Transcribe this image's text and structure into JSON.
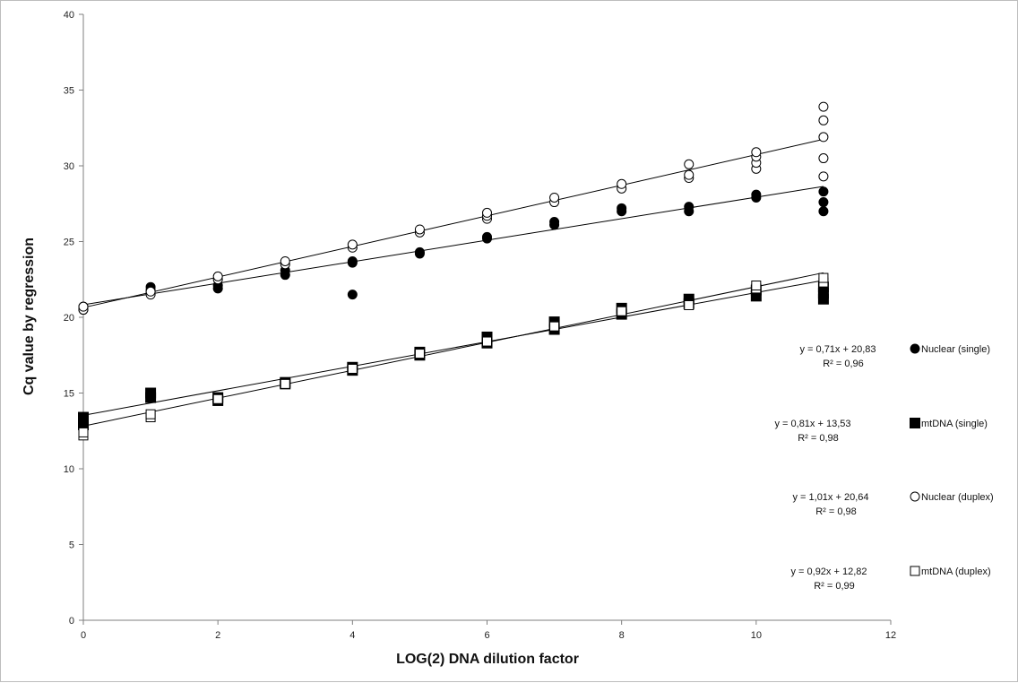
{
  "chart_data": {
    "type": "scatter",
    "title": "",
    "xlabel": "LOG(2) DNA dilution factor",
    "ylabel": "Cq value by regression",
    "xlim": [
      0,
      12
    ],
    "ylim": [
      0,
      40
    ],
    "xticks": [
      0,
      2,
      4,
      6,
      8,
      10,
      12
    ],
    "yticks": [
      0,
      5,
      10,
      15,
      20,
      25,
      30,
      35,
      40
    ],
    "grid": false,
    "legend_position": "right",
    "series": [
      {
        "name": "Nuclear (single)",
        "marker": "filled-circle",
        "equation": "y = 0,71x + 20,83",
        "r2": "R² = 0,96",
        "slope": 0.71,
        "intercept": 20.83,
        "points": [
          [
            0,
            20.5
          ],
          [
            0,
            20.7
          ],
          [
            1,
            21.6
          ],
          [
            1,
            21.8
          ],
          [
            1,
            22.0
          ],
          [
            2,
            21.9
          ],
          [
            2,
            22.1
          ],
          [
            3,
            22.8
          ],
          [
            3,
            23.1
          ],
          [
            4,
            21.5
          ],
          [
            4,
            23.6
          ],
          [
            4,
            23.7
          ],
          [
            5,
            24.2
          ],
          [
            5,
            24.3
          ],
          [
            6,
            25.2
          ],
          [
            6,
            25.3
          ],
          [
            7,
            26.1
          ],
          [
            7,
            26.3
          ],
          [
            8,
            27.0
          ],
          [
            8,
            27.2
          ],
          [
            9,
            27.0
          ],
          [
            9,
            27.3
          ],
          [
            10,
            27.9
          ],
          [
            10,
            28.1
          ],
          [
            11,
            27.0
          ],
          [
            11,
            27.6
          ],
          [
            11,
            28.3
          ]
        ]
      },
      {
        "name": "mtDNA (single)",
        "marker": "filled-square",
        "equation": "y = 0,81x + 13,53",
        "r2": "R² = 0,98",
        "slope": 0.81,
        "intercept": 13.53,
        "points": [
          [
            0,
            12.9
          ],
          [
            0,
            13.4
          ],
          [
            1,
            14.7
          ],
          [
            1,
            15.0
          ],
          [
            2,
            14.5
          ],
          [
            2,
            14.7
          ],
          [
            3,
            15.6
          ],
          [
            3,
            15.7
          ],
          [
            4,
            16.5
          ],
          [
            4,
            16.7
          ],
          [
            5,
            17.5
          ],
          [
            5,
            17.7
          ],
          [
            6,
            18.3
          ],
          [
            6,
            18.7
          ],
          [
            7,
            19.2
          ],
          [
            7,
            19.7
          ],
          [
            8,
            20.2
          ],
          [
            8,
            20.6
          ],
          [
            9,
            20.9
          ],
          [
            9,
            21.2
          ],
          [
            10,
            21.4
          ],
          [
            10,
            21.8
          ],
          [
            11,
            21.2
          ],
          [
            11,
            21.6
          ],
          [
            11,
            22.0
          ]
        ]
      },
      {
        "name": "Nuclear (duplex)",
        "marker": "open-circle",
        "equation": "y = 1,01x + 20,64",
        "r2": "R² = 0,98",
        "slope": 1.01,
        "intercept": 20.64,
        "points": [
          [
            0,
            20.5
          ],
          [
            0,
            20.7
          ],
          [
            1,
            21.5
          ],
          [
            1,
            21.7
          ],
          [
            2,
            22.5
          ],
          [
            2,
            22.7
          ],
          [
            3,
            23.5
          ],
          [
            3,
            23.7
          ],
          [
            4,
            24.6
          ],
          [
            4,
            24.8
          ],
          [
            5,
            25.6
          ],
          [
            5,
            25.8
          ],
          [
            6,
            26.5
          ],
          [
            6,
            26.7
          ],
          [
            6,
            26.9
          ],
          [
            7,
            27.6
          ],
          [
            7,
            27.9
          ],
          [
            8,
            28.5
          ],
          [
            8,
            28.8
          ],
          [
            9,
            29.2
          ],
          [
            9,
            29.4
          ],
          [
            9,
            30.1
          ],
          [
            10,
            29.8
          ],
          [
            10,
            30.2
          ],
          [
            10,
            30.6
          ],
          [
            10,
            30.9
          ],
          [
            11,
            29.3
          ],
          [
            11,
            30.5
          ],
          [
            11,
            31.9
          ],
          [
            11,
            33.0
          ],
          [
            11,
            33.9
          ]
        ]
      },
      {
        "name": "mtDNA (duplex)",
        "marker": "open-square",
        "equation": "y = 0,92x + 12,82",
        "r2": "R² = 0,99",
        "slope": 0.92,
        "intercept": 12.82,
        "points": [
          [
            0,
            12.2
          ],
          [
            0,
            12.4
          ],
          [
            1,
            13.4
          ],
          [
            1,
            13.6
          ],
          [
            2,
            14.6
          ],
          [
            3,
            15.6
          ],
          [
            4,
            16.6
          ],
          [
            5,
            17.6
          ],
          [
            6,
            18.4
          ],
          [
            7,
            19.4
          ],
          [
            8,
            20.4
          ],
          [
            9,
            20.8
          ],
          [
            10,
            21.9
          ],
          [
            10,
            22.1
          ],
          [
            11,
            22.3
          ],
          [
            11,
            22.6
          ]
        ]
      }
    ]
  }
}
